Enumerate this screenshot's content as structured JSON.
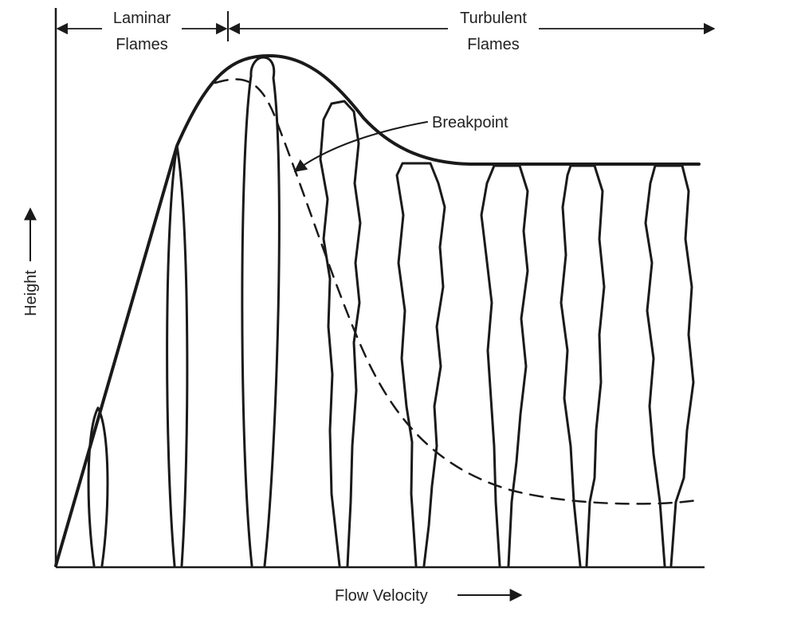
{
  "regions": {
    "laminar": {
      "line1": "Laminar",
      "line2": "Flames"
    },
    "turbulent": {
      "line1": "Turbulent",
      "line2": "Flames"
    }
  },
  "annotation": {
    "breakpoint": "Breakpoint"
  },
  "axes": {
    "x_label": "Flow Velocity",
    "y_label": "Height",
    "arrow_glyph": "→"
  },
  "colors": {
    "ink": "#1a1a1a",
    "background": "#ffffff"
  }
}
